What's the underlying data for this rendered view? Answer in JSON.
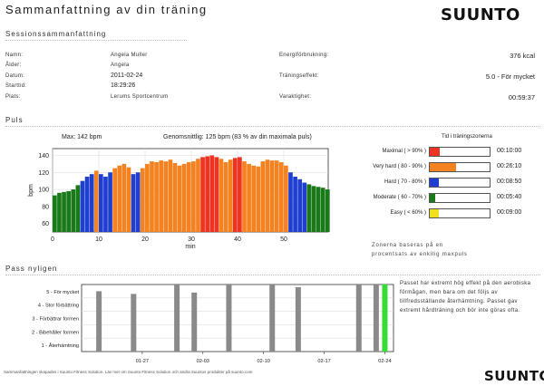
{
  "header": {
    "title": "Sammanfattning av din träning",
    "brand": "SUUNTO"
  },
  "session": {
    "section_title": "Sessionssammanfattning",
    "left": [
      {
        "label": "Namn:",
        "value": "Angela Muller"
      },
      {
        "label": "Ålder:",
        "value": "Angela"
      },
      {
        "label": "Datum:",
        "value": "2011-02-24"
      },
      {
        "label": "Starttid:",
        "value": "18:29:26"
      },
      {
        "label": "Plats:",
        "value": "Lerums Sportcentrum"
      }
    ],
    "right": [
      {
        "label": "Energiförbrukning:",
        "value": "376 kcal"
      },
      {
        "label": "Träningseffekt:",
        "value": "5.0 - För mycket"
      },
      {
        "label": "Varaktighet:",
        "value": "00:59:37"
      }
    ]
  },
  "pulse": {
    "section_title": "Puls",
    "max_text": "Max: 142 bpm",
    "avg_text": "Genomsnittlig: 125 bpm (83 % av din maximala puls)",
    "zones_title": "Tid i träningszonerna",
    "zones_note": "Zonerna baseras på en procentsats av enkilig maxpuls",
    "zones": [
      {
        "label": "Maximal (  > 90% )",
        "time": "00:10:00",
        "fraction": 0.17,
        "color": "#ee3322"
      },
      {
        "label": "Very hard ( 80 - 90% )",
        "time": "00:26:10",
        "fraction": 0.44,
        "color": "#f58220"
      },
      {
        "label": "Hard ( 70 - 80% )",
        "time": "00:08:50",
        "fraction": 0.15,
        "color": "#1f3fd0"
      },
      {
        "label": "Moderate ( 60 - 70% )",
        "time": "00:05:40",
        "fraction": 0.095,
        "color": "#1a7a1a"
      },
      {
        "label": "Easy (  < 60% )",
        "time": "00:09:00",
        "fraction": 0.15,
        "color": "#f0e020"
      }
    ]
  },
  "chart_data": [
    {
      "type": "bar",
      "title": "",
      "xlabel": "min",
      "ylabel": "bpm",
      "xlim": [
        0,
        59.6
      ],
      "ylim": [
        50,
        148
      ],
      "xticks": [
        0,
        10,
        20,
        30,
        40,
        50
      ],
      "yticks": [
        60,
        80,
        100,
        120,
        140
      ],
      "grid": true,
      "zone_colors": {
        "moderate": "#1a7a1a",
        "hard": "#1f3fd0",
        "very_hard": "#f58220",
        "maximal": "#ee3322"
      },
      "x": [
        0,
        1,
        2,
        3,
        4,
        5,
        6,
        7,
        8,
        9,
        10,
        11,
        12,
        13,
        14,
        15,
        16,
        17,
        18,
        19,
        20,
        21,
        22,
        23,
        24,
        25,
        26,
        27,
        28,
        29,
        30,
        31,
        32,
        33,
        34,
        35,
        36,
        37,
        38,
        39,
        40,
        41,
        42,
        43,
        44,
        45,
        46,
        47,
        48,
        49,
        50,
        51,
        52,
        53,
        54,
        55,
        56,
        57,
        58,
        59
      ],
      "values": [
        93,
        96,
        97,
        98,
        100,
        105,
        110,
        115,
        118,
        122,
        118,
        115,
        120,
        125,
        128,
        130,
        126,
        118,
        120,
        125,
        130,
        133,
        132,
        134,
        133,
        135,
        131,
        128,
        130,
        132,
        133,
        136,
        138,
        139,
        140,
        138,
        136,
        132,
        135,
        137,
        138,
        133,
        130,
        128,
        127,
        133,
        135,
        134,
        134,
        132,
        128,
        120,
        115,
        112,
        108,
        106,
        104,
        103,
        102,
        100
      ]
    },
    {
      "type": "bar",
      "title": "",
      "categories": [
        "01-27",
        "02-03",
        "02-10",
        "02-17",
        "02-24"
      ],
      "ylabels": [
        "5 - För mycket",
        "4 - Stor förbättring",
        "3 - Förbättrar formen",
        "2 - Bibehåller formen",
        "1 - Återhämtning"
      ],
      "ylim": [
        0,
        5
      ],
      "bars": [
        {
          "date": "2011-01-22",
          "value": 4.5
        },
        {
          "date": "2011-01-26",
          "value": 4.3
        },
        {
          "date": "2011-01-31",
          "value": 5.0
        },
        {
          "date": "2011-02-02",
          "value": 4.4
        },
        {
          "date": "2011-02-06",
          "value": 5.0
        },
        {
          "date": "2011-02-11",
          "value": 5.0
        },
        {
          "date": "2011-02-14",
          "value": 4.8
        },
        {
          "date": "2011-02-21",
          "value": 5.0
        },
        {
          "date": "2011-02-23",
          "value": 5.0
        },
        {
          "date": "2011-02-24",
          "value": 5.0,
          "highlight": true
        }
      ]
    }
  ],
  "recent": {
    "section_title": "Pass nyligen",
    "description": "Passet har extremt hög effekt på den aerobiska förmågan, men bara om det följs av tillfredsställande återhämtning. Passet gav extremt hårdträning och bör inte göras ofta."
  },
  "footer": {
    "text": "Sammanfattningen skapades i Suunto Fitness Solution. Läs mer om Suunto Fitness Solution och andra Suuntos produkter på suunto.com",
    "brand": "SUUNTO"
  }
}
